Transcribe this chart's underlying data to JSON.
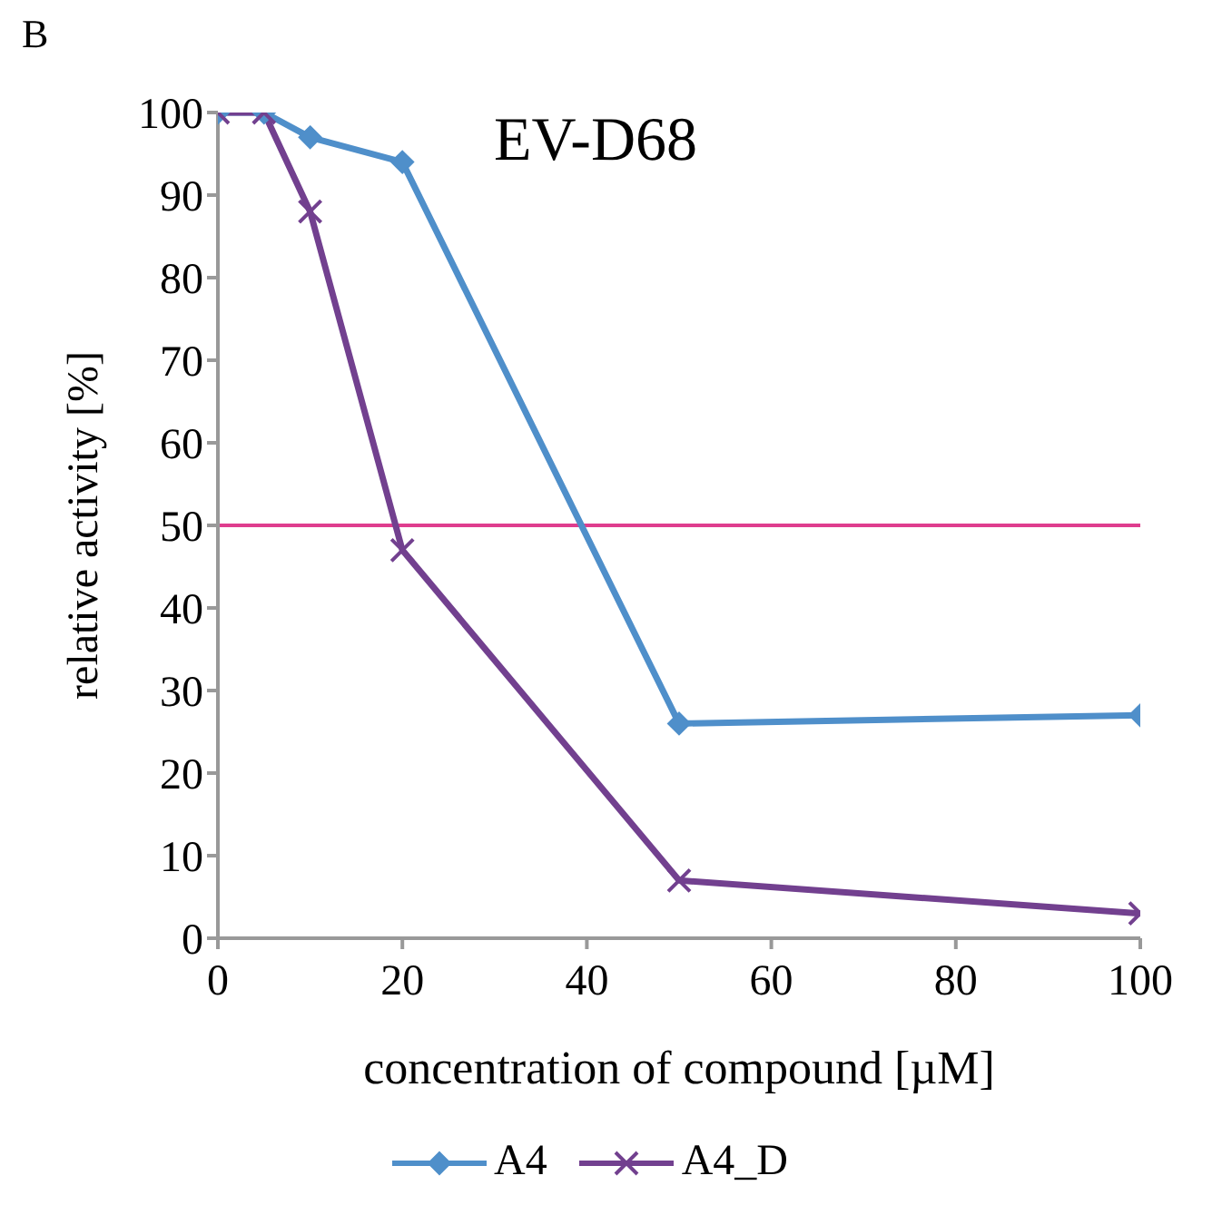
{
  "chart_data": {
    "type": "line",
    "title": "EV-D68",
    "xlabel": "concentration of compound [µM]",
    "ylabel": "relative activity [%]",
    "annotations": [
      "B"
    ],
    "x": [
      0,
      5,
      10,
      20,
      50,
      100
    ],
    "series": [
      {
        "name": "A4",
        "color": "#4f8fca",
        "marker": "diamond",
        "values": [
          100,
          100,
          97,
          94,
          26,
          27
        ]
      },
      {
        "name": "A4_D",
        "color": "#72408f",
        "marker": "cross",
        "values": [
          100,
          100,
          88,
          47,
          7,
          3
        ]
      }
    ],
    "xlim": [
      0,
      100
    ],
    "xticks": [
      0,
      20,
      40,
      60,
      80,
      100
    ],
    "ylim": [
      0,
      100
    ],
    "yticks": [
      0,
      10,
      20,
      30,
      40,
      50,
      60,
      70,
      80,
      90,
      100
    ],
    "ref_lines": [
      {
        "axis": "y",
        "value": 50,
        "color": "#df3d8e"
      }
    ],
    "grid": false,
    "legend": "bottom",
    "line_style": "solid"
  }
}
